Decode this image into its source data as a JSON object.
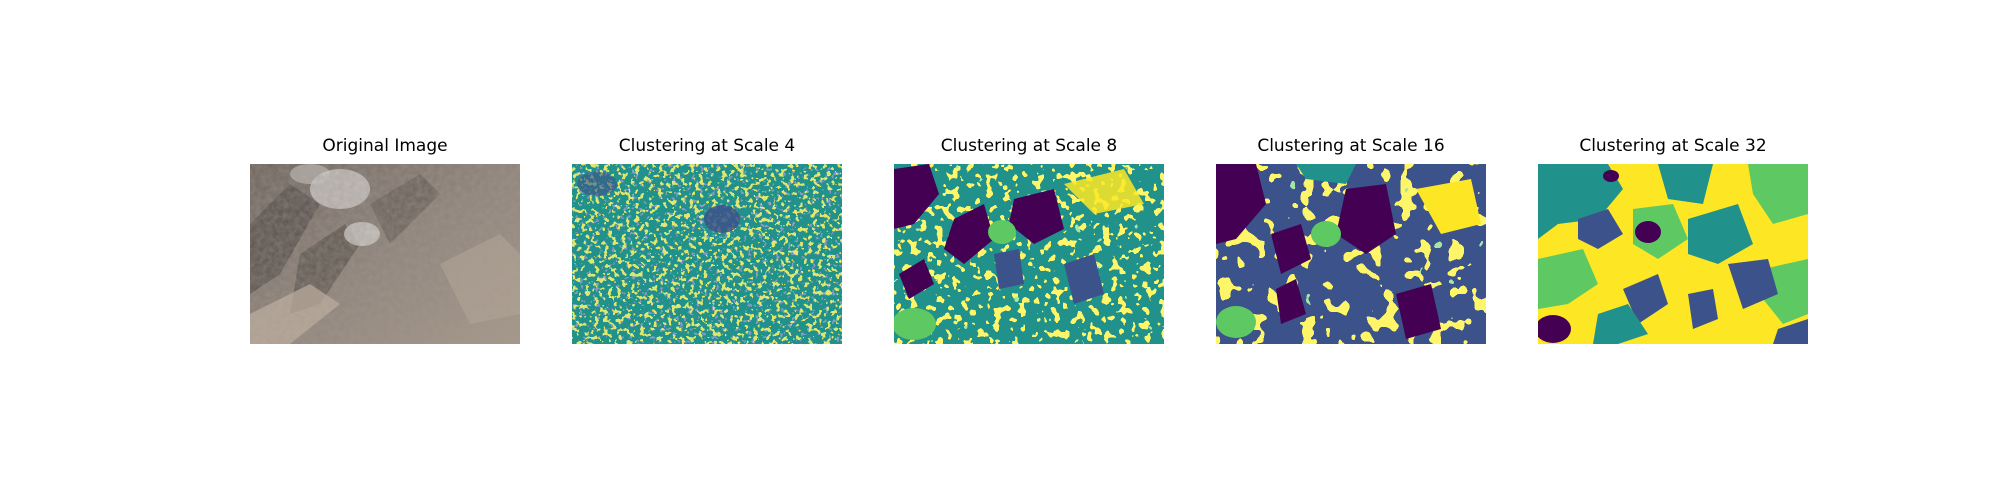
{
  "figure": {
    "panels": [
      {
        "title": "Original Image",
        "kind": "photo"
      },
      {
        "title": "Clustering at Scale 4",
        "kind": "clusters",
        "scale": 4
      },
      {
        "title": "Clustering at Scale 8",
        "kind": "clusters",
        "scale": 8
      },
      {
        "title": "Clustering at Scale 16",
        "kind": "clusters",
        "scale": 16
      },
      {
        "title": "Clustering at Scale 32",
        "kind": "clusters",
        "scale": 32
      }
    ],
    "colormap": [
      "#440154",
      "#3b528b",
      "#21918c",
      "#5ec962",
      "#fde725"
    ]
  }
}
